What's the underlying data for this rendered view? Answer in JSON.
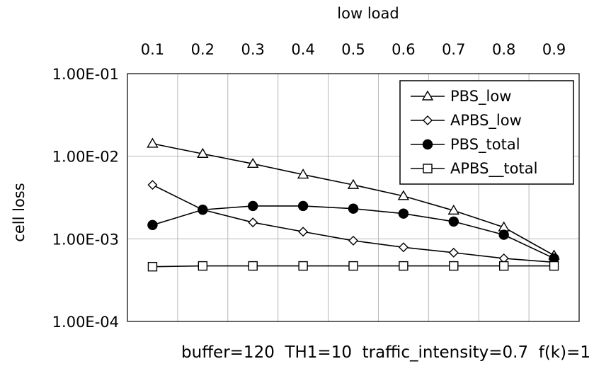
{
  "chart_data": {
    "type": "line",
    "xlabel": "low load",
    "ylabel": "cell loss",
    "caption": "buffer=120  TH1=10  traffic_intensity=0.7  f(k)=1",
    "x": [
      0.1,
      0.2,
      0.3,
      0.4,
      0.5,
      0.6,
      0.7,
      0.8,
      0.9
    ],
    "x_tick_labels": [
      "0.1",
      "0.2",
      "0.3",
      "0.4",
      "0.5",
      "0.6",
      "0.7",
      "0.8",
      "0.9"
    ],
    "y_scale": "log",
    "ylim": [
      0.0001,
      0.1
    ],
    "y_tick_values": [
      0.1,
      0.01,
      0.001,
      0.0001
    ],
    "y_tick_labels": [
      "1.00E-01",
      "1.00E-02",
      "1.00E-03",
      "1.00E-04"
    ],
    "x_axis_position": "top",
    "grid": true,
    "legend_position": "top-right",
    "series": [
      {
        "name": "PBS_low",
        "marker": "triangle-open",
        "values": [
          0.0142,
          0.0107,
          0.0081,
          0.006,
          0.0045,
          0.0033,
          0.0022,
          0.00138,
          0.00063
        ]
      },
      {
        "name": "APBS_low",
        "marker": "diamond-open",
        "values": [
          0.0045,
          0.00225,
          0.00158,
          0.00122,
          0.00095,
          0.00079,
          0.00068,
          0.00058,
          0.00052
        ]
      },
      {
        "name": "PBS_total",
        "marker": "circle-filled",
        "values": [
          0.00147,
          0.00225,
          0.0025,
          0.0025,
          0.00232,
          0.00202,
          0.00162,
          0.00112,
          0.00058
        ]
      },
      {
        "name": "APBS__total",
        "marker": "square-open",
        "values": [
          0.00046,
          0.00047,
          0.00047,
          0.00047,
          0.00047,
          0.00047,
          0.00047,
          0.00047,
          0.00047
        ]
      }
    ]
  }
}
